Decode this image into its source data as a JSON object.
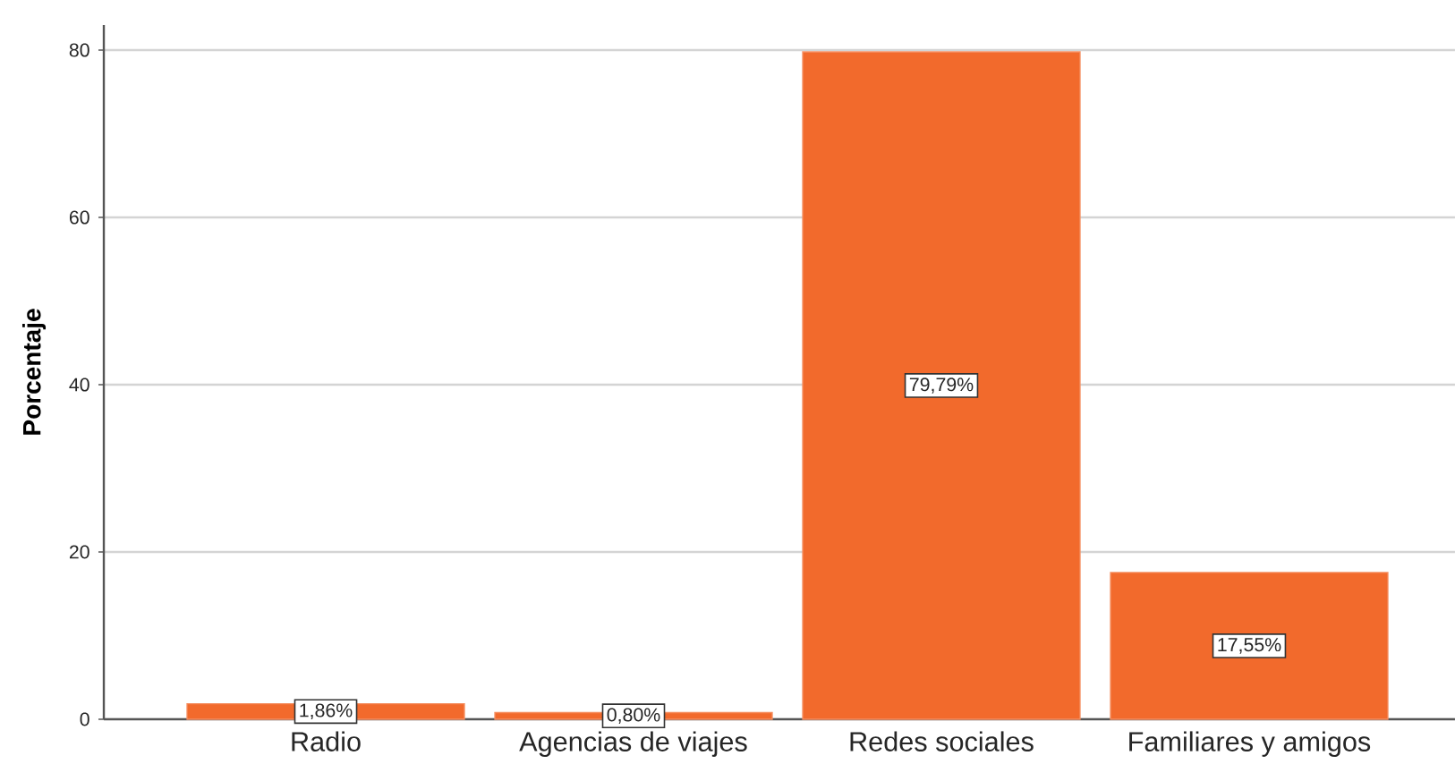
{
  "chart_data": {
    "type": "bar",
    "ylabel": "Porcentaje",
    "categories": [
      "Radio",
      "Agencias de viajes",
      "Redes sociales",
      "Familiares y amigos"
    ],
    "values": [
      1.86,
      0.8,
      79.79,
      17.55
    ],
    "value_labels": [
      "1,86%",
      "0,80%",
      "79,79%",
      "17,55%"
    ],
    "color": "#f26a2c",
    "ylim": [
      0,
      83
    ],
    "yticks": [
      0,
      20,
      40,
      60,
      80
    ],
    "grid": "y"
  }
}
